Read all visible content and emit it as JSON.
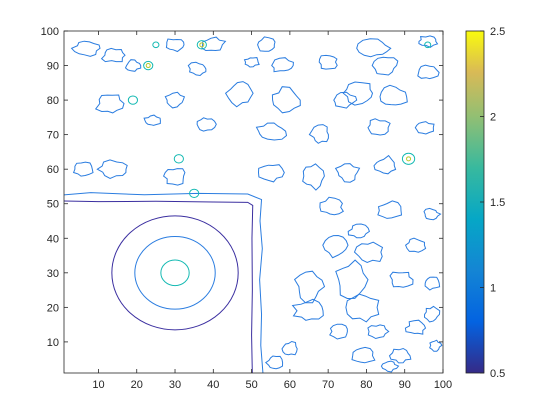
{
  "chart_data": {
    "type": "contour",
    "title": "",
    "xlabel": "",
    "ylabel": "",
    "xlim": [
      1,
      100
    ],
    "ylim": [
      1,
      100
    ],
    "x_ticks": [
      10,
      20,
      30,
      40,
      50,
      60,
      70,
      80,
      90,
      100
    ],
    "y_ticks": [
      10,
      20,
      30,
      40,
      50,
      60,
      70,
      80,
      90,
      100
    ],
    "colormap": "parula",
    "colorbar": {
      "range": [
        0.5,
        2.5
      ],
      "ticks": [
        0.5,
        1,
        1.5,
        2,
        2.5
      ],
      "tick_labels": [
        "0.5",
        "1",
        "1.5",
        "2",
        "2.5"
      ],
      "location": "right"
    },
    "contour_levels": [
      0.5,
      1,
      1.5,
      2,
      2.5
    ],
    "level_colors": {
      "0.5": "#3b2fa0",
      "1": "#2b7de0",
      "1.5": "#13b9b2",
      "2": "#b6c92b",
      "2.5": "#f9e024"
    },
    "features": {
      "square_plateau": {
        "x_range": [
          1,
          50
        ],
        "y_range": [
          1,
          51
        ],
        "boundary_levels": [
          0.5,
          1
        ]
      },
      "circular_peak": {
        "center": [
          30,
          30
        ],
        "level_radii": [
          {
            "level": 0.5,
            "radius": 16.5
          },
          {
            "level": 1,
            "radius": 10.5
          },
          {
            "level": 1.5,
            "radius": 3.7
          }
        ]
      }
    },
    "grid": false,
    "box": true
  }
}
